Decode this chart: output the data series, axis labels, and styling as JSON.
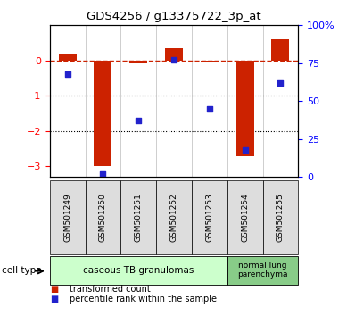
{
  "title": "GDS4256 / g13375722_3p_at",
  "samples": [
    "GSM501249",
    "GSM501250",
    "GSM501251",
    "GSM501252",
    "GSM501253",
    "GSM501254",
    "GSM501255"
  ],
  "transformed_count": [
    0.2,
    -3.0,
    -0.07,
    0.35,
    -0.05,
    -2.7,
    0.6
  ],
  "percentile_rank": [
    68,
    2,
    37,
    77,
    45,
    18,
    62
  ],
  "ylim_left": [
    -3.3,
    1.0
  ],
  "ylim_right": [
    0,
    100
  ],
  "yticks_left": [
    0,
    -1,
    -2,
    -3
  ],
  "yticks_right": [
    0,
    25,
    50,
    75,
    100
  ],
  "dotted_lines": [
    -1,
    -2
  ],
  "bar_color": "#cc2200",
  "scatter_color": "#2222cc",
  "dashed_line_color": "#cc2200",
  "group1_label": "caseous TB granulomas",
  "group1_color": "#ccffcc",
  "group1_samples": [
    0,
    1,
    2,
    3,
    4
  ],
  "group2_label": "normal lung\nparenchyma",
  "group2_color": "#88cc88",
  "group2_samples": [
    5,
    6
  ],
  "legend_bar_label": "transformed count",
  "legend_scatter_label": "percentile rank within the sample",
  "cell_type_label": "cell type",
  "bar_width": 0.5,
  "scatter_size": 20
}
